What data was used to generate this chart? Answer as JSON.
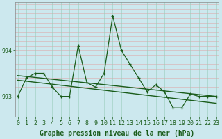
{
  "hours": [
    0,
    1,
    2,
    3,
    4,
    5,
    6,
    7,
    8,
    9,
    10,
    11,
    12,
    13,
    14,
    15,
    16,
    17,
    18,
    19,
    20,
    21,
    22,
    23
  ],
  "pressure_main": [
    993.0,
    993.4,
    993.5,
    993.5,
    993.2,
    993.0,
    993.0,
    994.1,
    993.3,
    993.2,
    993.5,
    994.75,
    994.0,
    993.7,
    993.4,
    993.1,
    993.25,
    993.1,
    992.75,
    992.75,
    993.05,
    993.0,
    993.0,
    993.0
  ],
  "trend1_x": [
    0,
    23
  ],
  "trend1_y": [
    993.45,
    993.0
  ],
  "trend2_x": [
    0,
    23
  ],
  "trend2_y": [
    993.35,
    992.85
  ],
  "bg_color": "#cce8ee",
  "grid_color_v": "#99ccbb",
  "grid_color_h": "#ddaaaa",
  "line_color": "#1a5c1a",
  "ylim": [
    992.55,
    995.05
  ],
  "xlim": [
    -0.3,
    23.3
  ],
  "xlabel": "Graphe pression niveau de la mer (hPa)",
  "xlabel_fontsize": 7,
  "tick_fontsize": 6,
  "yticks": [
    993,
    994
  ],
  "ytick_labels": [
    "993",
    "994"
  ]
}
